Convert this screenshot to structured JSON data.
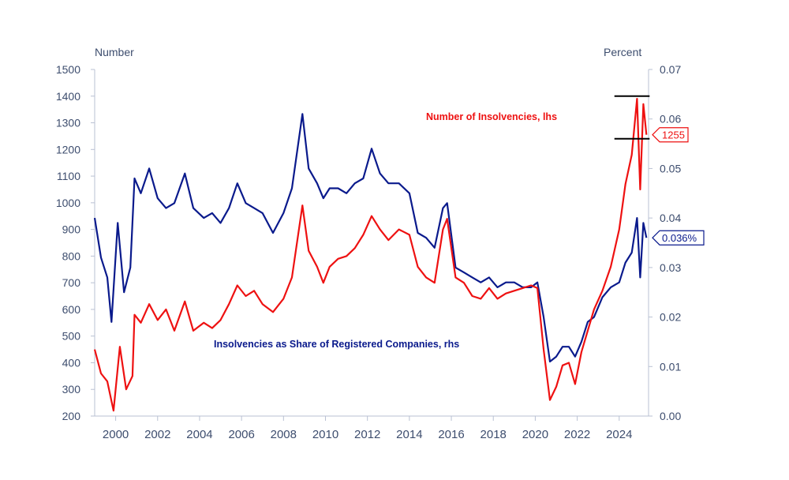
{
  "chart_data": {
    "type": "line",
    "title": "",
    "left_axis": {
      "label": "Number",
      "range": [
        200,
        1500
      ],
      "ticks": [
        "200",
        "300",
        "400",
        "500",
        "600",
        "700",
        "800",
        "900",
        "1000",
        "1100",
        "1200",
        "1300",
        "1400",
        "1500"
      ]
    },
    "right_axis": {
      "label": "Percent",
      "range": [
        0.0,
        0.07
      ],
      "ticks": [
        "0.00",
        "0.01",
        "0.02",
        "0.03",
        "0.04",
        "0.05",
        "0.06",
        "0.07"
      ]
    },
    "x_axis": {
      "range": [
        1999,
        2025.4
      ],
      "ticks": [
        "2000",
        "2002",
        "2004",
        "2006",
        "2008",
        "2010",
        "2012",
        "2014",
        "2016",
        "2018",
        "2020",
        "2022",
        "2024"
      ]
    },
    "grid": false,
    "series": [
      {
        "name": "Number of Insolvencies, lhs",
        "axis": "left",
        "color": "#ee1111",
        "points": [
          [
            1999.0,
            450
          ],
          [
            1999.3,
            360
          ],
          [
            1999.6,
            330
          ],
          [
            1999.9,
            220
          ],
          [
            2000.2,
            460
          ],
          [
            2000.5,
            300
          ],
          [
            2000.8,
            350
          ],
          [
            2000.9,
            580
          ],
          [
            2001.2,
            550
          ],
          [
            2001.6,
            620
          ],
          [
            2002.0,
            560
          ],
          [
            2002.4,
            600
          ],
          [
            2002.8,
            520
          ],
          [
            2003.3,
            630
          ],
          [
            2003.7,
            520
          ],
          [
            2004.2,
            550
          ],
          [
            2004.6,
            530
          ],
          [
            2005.0,
            560
          ],
          [
            2005.4,
            620
          ],
          [
            2005.8,
            690
          ],
          [
            2006.2,
            650
          ],
          [
            2006.6,
            670
          ],
          [
            2007.0,
            620
          ],
          [
            2007.5,
            590
          ],
          [
            2008.0,
            640
          ],
          [
            2008.4,
            720
          ],
          [
            2008.9,
            990
          ],
          [
            2009.2,
            820
          ],
          [
            2009.6,
            760
          ],
          [
            2009.9,
            700
          ],
          [
            2010.2,
            760
          ],
          [
            2010.6,
            790
          ],
          [
            2011.0,
            800
          ],
          [
            2011.4,
            830
          ],
          [
            2011.8,
            880
          ],
          [
            2012.2,
            950
          ],
          [
            2012.6,
            900
          ],
          [
            2013.0,
            860
          ],
          [
            2013.5,
            900
          ],
          [
            2014.0,
            880
          ],
          [
            2014.4,
            760
          ],
          [
            2014.8,
            720
          ],
          [
            2015.2,
            700
          ],
          [
            2015.6,
            900
          ],
          [
            2015.8,
            940
          ],
          [
            2016.2,
            720
          ],
          [
            2016.6,
            700
          ],
          [
            2017.0,
            650
          ],
          [
            2017.4,
            640
          ],
          [
            2017.8,
            680
          ],
          [
            2018.2,
            640
          ],
          [
            2018.6,
            660
          ],
          [
            2019.0,
            670
          ],
          [
            2019.4,
            680
          ],
          [
            2019.8,
            690
          ],
          [
            2020.1,
            680
          ],
          [
            2020.4,
            450
          ],
          [
            2020.7,
            260
          ],
          [
            2021.0,
            310
          ],
          [
            2021.3,
            390
          ],
          [
            2021.6,
            400
          ],
          [
            2021.9,
            320
          ],
          [
            2022.2,
            440
          ],
          [
            2022.5,
            520
          ],
          [
            2022.8,
            600
          ],
          [
            2023.2,
            670
          ],
          [
            2023.6,
            760
          ],
          [
            2024.0,
            900
          ],
          [
            2024.3,
            1070
          ],
          [
            2024.6,
            1180
          ],
          [
            2024.85,
            1390
          ],
          [
            2025.0,
            1050
          ],
          [
            2025.15,
            1370
          ],
          [
            2025.3,
            1255
          ]
        ]
      },
      {
        "name": "Insolvencies as Share of Registered Companies, rhs",
        "axis": "right",
        "color": "#0a1a8c",
        "points": [
          [
            1999.0,
            0.04
          ],
          [
            1999.3,
            0.032
          ],
          [
            1999.6,
            0.028
          ],
          [
            1999.8,
            0.019
          ],
          [
            2000.1,
            0.039
          ],
          [
            2000.4,
            0.025
          ],
          [
            2000.7,
            0.03
          ],
          [
            2000.9,
            0.048
          ],
          [
            2001.2,
            0.045
          ],
          [
            2001.6,
            0.05
          ],
          [
            2002.0,
            0.044
          ],
          [
            2002.4,
            0.042
          ],
          [
            2002.8,
            0.043
          ],
          [
            2003.3,
            0.049
          ],
          [
            2003.7,
            0.042
          ],
          [
            2004.2,
            0.04
          ],
          [
            2004.6,
            0.041
          ],
          [
            2005.0,
            0.039
          ],
          [
            2005.4,
            0.042
          ],
          [
            2005.8,
            0.047
          ],
          [
            2006.2,
            0.043
          ],
          [
            2006.6,
            0.042
          ],
          [
            2007.0,
            0.041
          ],
          [
            2007.5,
            0.037
          ],
          [
            2008.0,
            0.041
          ],
          [
            2008.4,
            0.046
          ],
          [
            2008.9,
            0.061
          ],
          [
            2009.2,
            0.05
          ],
          [
            2009.6,
            0.047
          ],
          [
            2009.9,
            0.044
          ],
          [
            2010.2,
            0.046
          ],
          [
            2010.6,
            0.046
          ],
          [
            2011.0,
            0.045
          ],
          [
            2011.4,
            0.047
          ],
          [
            2011.8,
            0.048
          ],
          [
            2012.2,
            0.054
          ],
          [
            2012.6,
            0.049
          ],
          [
            2013.0,
            0.047
          ],
          [
            2013.5,
            0.047
          ],
          [
            2014.0,
            0.045
          ],
          [
            2014.4,
            0.037
          ],
          [
            2014.8,
            0.036
          ],
          [
            2015.2,
            0.034
          ],
          [
            2015.6,
            0.042
          ],
          [
            2015.8,
            0.043
          ],
          [
            2016.2,
            0.03
          ],
          [
            2016.6,
            0.029
          ],
          [
            2017.0,
            0.028
          ],
          [
            2017.4,
            0.027
          ],
          [
            2017.8,
            0.028
          ],
          [
            2018.2,
            0.026
          ],
          [
            2018.6,
            0.027
          ],
          [
            2019.0,
            0.027
          ],
          [
            2019.4,
            0.026
          ],
          [
            2019.8,
            0.026
          ],
          [
            2020.1,
            0.027
          ],
          [
            2020.4,
            0.02
          ],
          [
            2020.7,
            0.011
          ],
          [
            2021.0,
            0.012
          ],
          [
            2021.3,
            0.014
          ],
          [
            2021.6,
            0.014
          ],
          [
            2021.9,
            0.012
          ],
          [
            2022.2,
            0.015
          ],
          [
            2022.5,
            0.019
          ],
          [
            2022.8,
            0.02
          ],
          [
            2023.2,
            0.024
          ],
          [
            2023.6,
            0.026
          ],
          [
            2024.0,
            0.027
          ],
          [
            2024.3,
            0.031
          ],
          [
            2024.6,
            0.033
          ],
          [
            2024.85,
            0.04
          ],
          [
            2025.0,
            0.028
          ],
          [
            2025.15,
            0.039
          ],
          [
            2025.3,
            0.036
          ]
        ]
      }
    ],
    "annotations": {
      "red_label": "Number of Insolvencies, lhs",
      "blue_label": "Insolvencies as Share of Registered Companies, rhs",
      "red_value": "1255",
      "blue_value": "0.036%",
      "range_marker_high": 1400,
      "range_marker_low": 1240
    }
  }
}
